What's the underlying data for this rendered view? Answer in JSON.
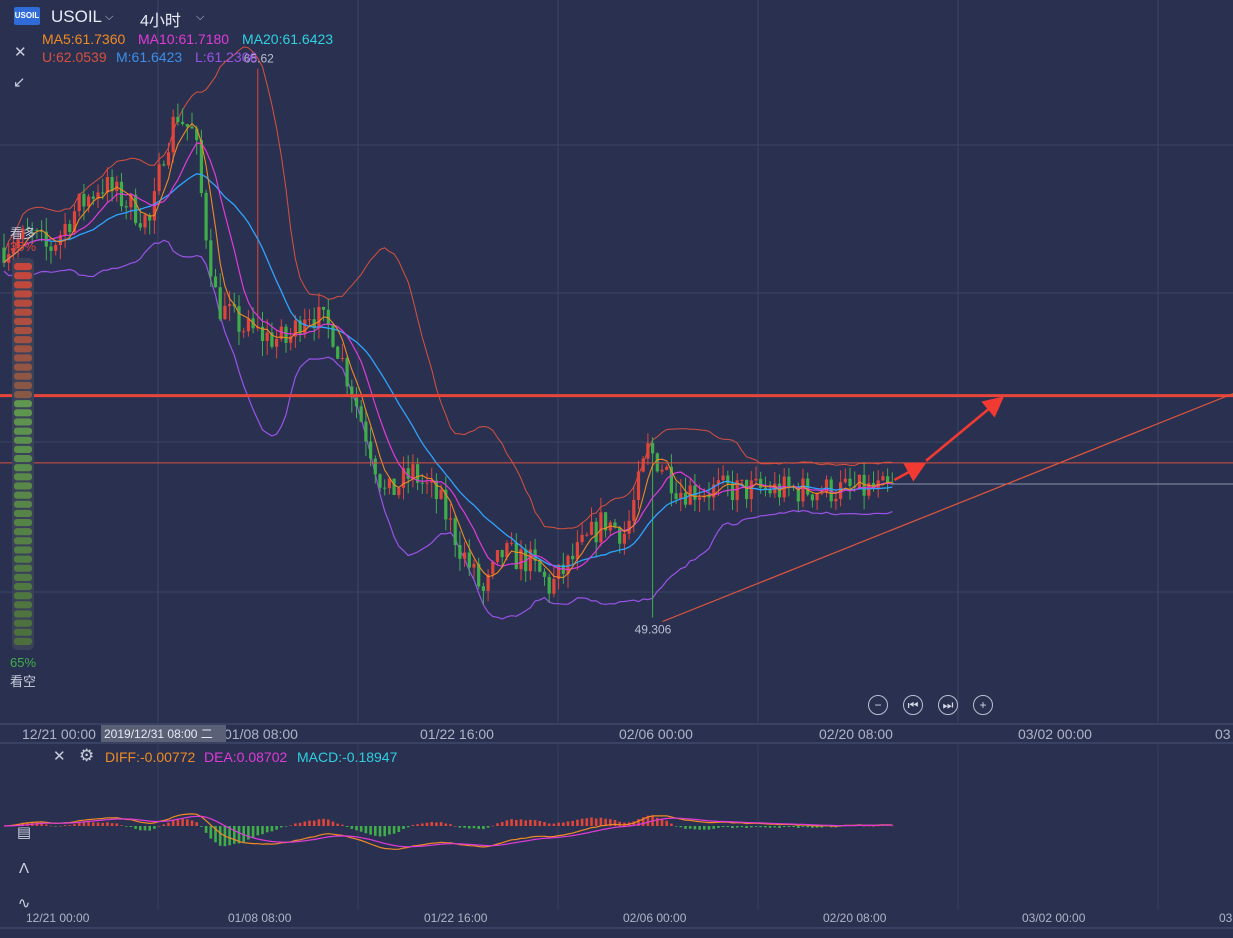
{
  "header": {
    "logo_text": "USOIL",
    "symbol": "USOIL",
    "timeframe": "4小时"
  },
  "indicators": {
    "ma5": "MA5:61.7360",
    "ma10": "MA10:61.7180",
    "ma20": "MA20:61.6423",
    "boll_u": "U:62.0539",
    "boll_m": "M:61.6423",
    "boll_l": "L:61.2306"
  },
  "macd": {
    "diff": "DIFF:-0.00772",
    "dea": "DEA:0.08702",
    "macd": "MACD:-0.18947"
  },
  "sentiment": {
    "bull_label": "看多",
    "bull_pct": "35%",
    "bear_pct": "65%",
    "bear_label": "看空",
    "bull_fraction": 0.35
  },
  "x_axis": {
    "labels": [
      "12/21 00:00",
      "01/08 08:00",
      "01/22 16:00",
      "02/06 00:00",
      "02/20 08:00",
      "03/02 00:00",
      "03"
    ],
    "crosshair_label": "2019/12/31 08:00 二"
  },
  "colors": {
    "background": "#2a3150",
    "up": "#e0453a",
    "down": "#3fae4a",
    "ma5": "#f08a24",
    "ma10": "#e03ad8",
    "ma20": "#2fa3ff",
    "boll_u": "#d8503f",
    "boll_m": "#3d8ee8",
    "boll_l": "#9a52e6",
    "resistance": "#e8453a",
    "macd_diff": "#f08a24",
    "macd_dea": "#e03ad8",
    "macd_text": "#2fd0e0"
  },
  "chart_data": {
    "type": "candlestick",
    "symbol": "USOIL",
    "interval": "4小时",
    "annotations": [
      {
        "label": "65.62",
        "value": 65.62,
        "kind": "high"
      },
      {
        "label": "49.306",
        "value": 49.306,
        "kind": "low"
      }
    ],
    "resistance_level": 55.9,
    "support_level": 53.9,
    "price_path": [
      {
        "x": 0,
        "p": 60.3
      },
      {
        "x": 0.03,
        "p": 60.7
      },
      {
        "x": 0.05,
        "p": 60.2
      },
      {
        "x": 0.08,
        "p": 61.4
      },
      {
        "x": 0.11,
        "p": 62.2
      },
      {
        "x": 0.14,
        "p": 61.6
      },
      {
        "x": 0.165,
        "p": 61.0
      },
      {
        "x": 0.18,
        "p": 63.2
      },
      {
        "x": 0.195,
        "p": 64.3
      },
      {
        "x": 0.215,
        "p": 63.6
      },
      {
        "x": 0.225,
        "p": 61.2
      },
      {
        "x": 0.24,
        "p": 58.6
      },
      {
        "x": 0.27,
        "p": 57.9
      },
      {
        "x": 0.29,
        "p": 57.7
      },
      {
        "x": 0.32,
        "p": 57.5
      },
      {
        "x": 0.34,
        "p": 58.5
      },
      {
        "x": 0.37,
        "p": 57.8
      },
      {
        "x": 0.4,
        "p": 55.4
      },
      {
        "x": 0.43,
        "p": 52.9
      },
      {
        "x": 0.46,
        "p": 53.6
      },
      {
        "x": 0.49,
        "p": 52.8
      },
      {
        "x": 0.515,
        "p": 51.3
      },
      {
        "x": 0.54,
        "p": 50.0
      },
      {
        "x": 0.56,
        "p": 51.2
      },
      {
        "x": 0.59,
        "p": 51.0
      },
      {
        "x": 0.615,
        "p": 50.2
      },
      {
        "x": 0.645,
        "p": 51.2
      },
      {
        "x": 0.675,
        "p": 52.2
      },
      {
        "x": 0.7,
        "p": 51.8
      },
      {
        "x": 0.725,
        "p": 54.3
      },
      {
        "x": 0.745,
        "p": 53.7
      },
      {
        "x": 0.76,
        "p": 53.1
      }
    ]
  }
}
